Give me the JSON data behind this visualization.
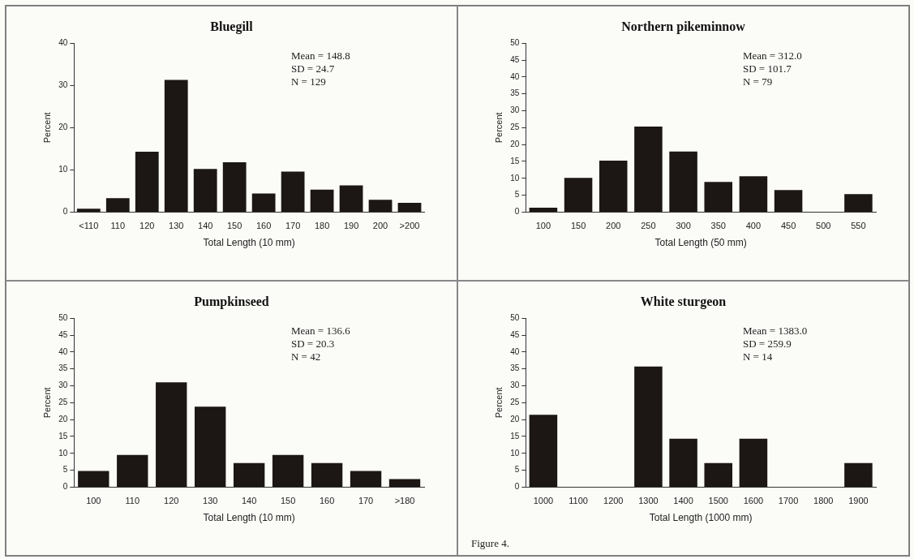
{
  "chart_data": [
    {
      "type": "bar",
      "title": "Bluegill",
      "xlabel": "Total Length (10 mm)",
      "ylabel": "Percent",
      "categories": [
        "<110",
        "110",
        "120",
        "130",
        "140",
        "150",
        "160",
        "170",
        "180",
        "190",
        "200",
        ">200"
      ],
      "values": [
        0.8,
        3.3,
        14.3,
        31.3,
        10.2,
        11.8,
        4.4,
        9.6,
        5.3,
        6.3,
        2.9,
        2.2
      ],
      "color": "#1c1714",
      "ylim": [
        0,
        40
      ],
      "yticks": [
        0,
        10,
        20,
        30,
        40
      ],
      "annotations": [
        "Mean = 148.8",
        "SD = 24.7",
        "N = 129"
      ]
    },
    {
      "type": "bar",
      "title": "Northern pikeminnow",
      "xlabel": "Total Length (50 mm)",
      "ylabel": "Percent",
      "categories": [
        "100",
        "150",
        "200",
        "250",
        "300",
        "350",
        "400",
        "450",
        "500",
        "550"
      ],
      "values": [
        1.3,
        10.1,
        15.2,
        25.3,
        17.9,
        8.9,
        10.6,
        6.5,
        0,
        5.3
      ],
      "color": "#1c1714",
      "ylim": [
        0,
        50
      ],
      "yticks": [
        0,
        5,
        10,
        15,
        20,
        25,
        30,
        35,
        40,
        45,
        50
      ],
      "annotations": [
        "Mean = 312.0",
        "SD = 101.7",
        "N = 79"
      ]
    },
    {
      "type": "bar",
      "title": "Pumpkinseed",
      "xlabel": "Total Length (10 mm)",
      "ylabel": "Percent",
      "categories": [
        "100",
        "110",
        "120",
        "130",
        "140",
        "150",
        "160",
        "170",
        ">180"
      ],
      "values": [
        4.8,
        9.5,
        31.0,
        23.8,
        7.1,
        9.5,
        7.1,
        4.8,
        2.4
      ],
      "color": "#1c1714",
      "ylim": [
        0,
        50
      ],
      "yticks": [
        0,
        5,
        10,
        15,
        20,
        25,
        30,
        35,
        40,
        45,
        50
      ],
      "annotations": [
        "Mean = 136.6",
        "SD = 20.3",
        "N = 42"
      ]
    },
    {
      "type": "bar",
      "title": "White sturgeon",
      "xlabel": "Total Length (1000 mm)",
      "ylabel": "Percent",
      "categories": [
        "1000",
        "1100",
        "1200",
        "1300",
        "1400",
        "1500",
        "1600",
        "1700",
        "1800",
        "1900"
      ],
      "values": [
        21.4,
        0,
        0,
        35.7,
        14.3,
        7.1,
        14.3,
        0,
        0,
        7.1
      ],
      "color": "#1c1714",
      "ylim": [
        0,
        50
      ],
      "yticks": [
        0,
        5,
        10,
        15,
        20,
        25,
        30,
        35,
        40,
        45,
        50
      ],
      "annotations": [
        "Mean = 1383.0",
        "SD = 259.9",
        "N = 14",
        "Figure 4."
      ]
    }
  ]
}
